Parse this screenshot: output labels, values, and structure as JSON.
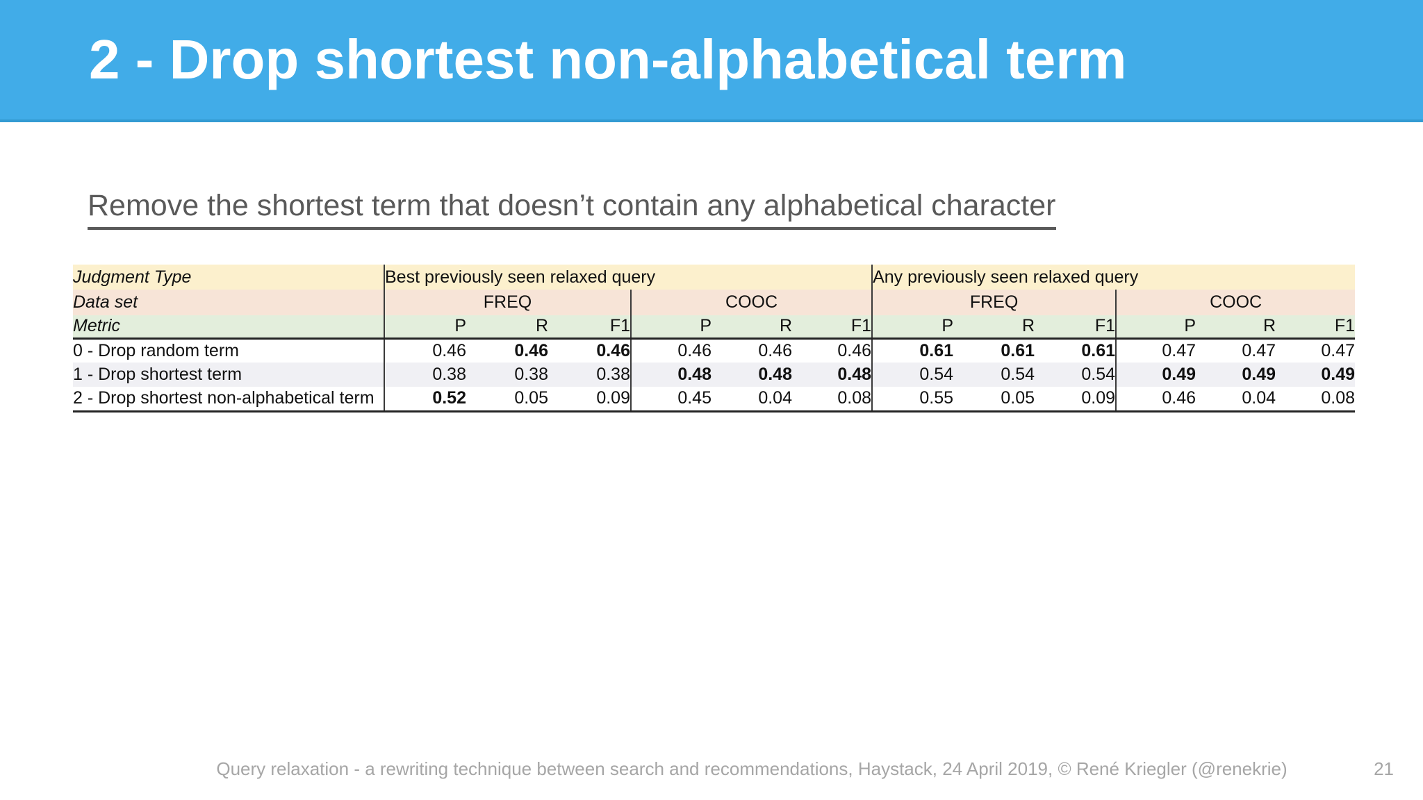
{
  "slide": {
    "title": "2 - Drop shortest non-alphabetical term",
    "subtitle": "Remove the shortest term that doesn’t contain any alphabetical character",
    "footer": "Query relaxation - a rewriting technique between search and recommendations, Haystack, 24 April 2019, © René Kriegler (@renekrie)",
    "page_number": "21"
  },
  "colors": {
    "title_band_blue": "#41ACE8",
    "judgment_row_yellow": "#FCF0CD",
    "dataset_row_peach": "#F7E4D7",
    "metric_row_green": "#E3EEDC",
    "alt_row_gray": "#F0F0F4",
    "subtitle_gray": "#595959",
    "footer_gray": "#A6A6A6",
    "title_text": "#FFFFFF"
  },
  "table": {
    "row_header_labels": [
      "Judgment Type",
      "Data set",
      "Metric"
    ],
    "judgment_types": [
      "Best previously seen relaxed query",
      "Any previously seen relaxed query"
    ],
    "data_sets": [
      "FREQ",
      "COOC",
      "FREQ",
      "COOC"
    ],
    "metrics": [
      "P",
      "R",
      "F1"
    ],
    "rows": [
      {
        "label": "0 - Drop random term",
        "values": [
          "0.46",
          "0.46",
          "0.46",
          "0.46",
          "0.46",
          "0.46",
          "0.61",
          "0.61",
          "0.61",
          "0.47",
          "0.47",
          "0.47"
        ],
        "bold": [
          false,
          true,
          true,
          false,
          false,
          false,
          true,
          true,
          true,
          false,
          false,
          false
        ]
      },
      {
        "label": "1 - Drop shortest term",
        "values": [
          "0.38",
          "0.38",
          "0.38",
          "0.48",
          "0.48",
          "0.48",
          "0.54",
          "0.54",
          "0.54",
          "0.49",
          "0.49",
          "0.49"
        ],
        "bold": [
          false,
          false,
          false,
          true,
          true,
          true,
          false,
          false,
          false,
          true,
          true,
          true
        ]
      },
      {
        "label": "2 - Drop shortest non-alphabetical term",
        "values": [
          "0.52",
          "0.05",
          "0.09",
          "0.45",
          "0.04",
          "0.08",
          "0.55",
          "0.05",
          "0.09",
          "0.46",
          "0.04",
          "0.08"
        ],
        "bold": [
          true,
          false,
          false,
          false,
          false,
          false,
          false,
          false,
          false,
          false,
          false,
          false
        ]
      }
    ]
  }
}
